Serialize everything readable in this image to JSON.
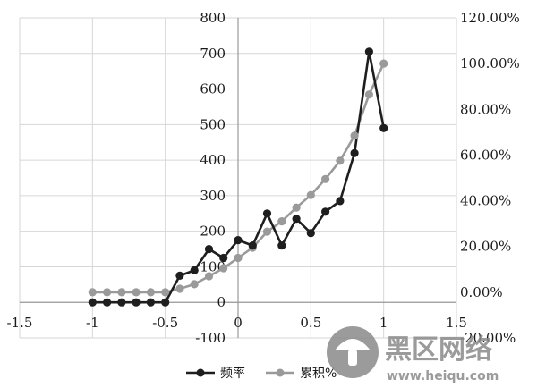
{
  "chart_data": {
    "type": "line",
    "x_ticks": [
      "-1.5",
      "-1",
      "-0.5",
      "0",
      "0.5",
      "1",
      "1.5"
    ],
    "y_ticks_left": [
      "-100",
      "0",
      "100",
      "200",
      "300",
      "400",
      "500",
      "600",
      "700",
      "800"
    ],
    "y_ticks_right": [
      "-20.00%",
      "0.00%",
      "20.00%",
      "40.00%",
      "60.00%",
      "80.00%",
      "100.00%",
      "120.00%"
    ],
    "xlim": [
      -1.5,
      1.5
    ],
    "ylim_left": [
      -100,
      800
    ],
    "ylim_right": [
      -20,
      120
    ],
    "grid": true,
    "legend_position": "bottom",
    "series": [
      {
        "name": "频率",
        "axis": "left",
        "color": "#1e1e1e",
        "x": [
          -1.0,
          -0.9,
          -0.8,
          -0.7,
          -0.6,
          -0.5,
          -0.4,
          -0.3,
          -0.2,
          -0.1,
          0.0,
          0.1,
          0.2,
          0.3,
          0.4,
          0.5,
          0.6,
          0.7,
          0.8,
          0.9,
          1.0
        ],
        "y": [
          0,
          0,
          0,
          0,
          0,
          0,
          75,
          90,
          150,
          125,
          175,
          160,
          250,
          160,
          235,
          195,
          255,
          285,
          420,
          705,
          490
        ]
      },
      {
        "name": "累积%",
        "axis": "right",
        "color": "#9a9a9a",
        "x": [
          -1.0,
          -0.9,
          -0.8,
          -0.7,
          -0.6,
          -0.5,
          -0.4,
          -0.3,
          -0.2,
          -0.1,
          0.0,
          0.1,
          0.2,
          0.3,
          0.4,
          0.5,
          0.6,
          0.7,
          0.8,
          0.9,
          1.0
        ],
        "y": [
          0,
          0,
          0,
          0,
          0,
          0,
          1.5,
          3.5,
          7,
          10.5,
          15,
          19.5,
          26.5,
          31,
          37,
          42.5,
          49.5,
          57.5,
          68.5,
          86.5,
          100
        ]
      }
    ]
  },
  "legend": {
    "series1_label": "频率",
    "series2_label": "累积%"
  },
  "watermark": {
    "text": "黑区网络",
    "url": "www.heiqu.com"
  }
}
